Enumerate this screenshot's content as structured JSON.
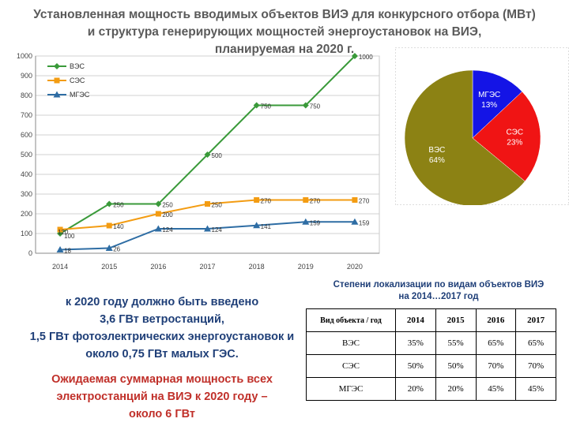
{
  "title": {
    "line1": "Установленная мощность вводимых объектов ВИЭ для конкурсного отбора (МВт)",
    "line2": "и структура генерирующих мощностей энергоустановок на ВИЭ,",
    "line3": "планируемая на 2020 г."
  },
  "chart_data": [
    {
      "type": "line",
      "x": [
        "2014",
        "2015",
        "2016",
        "2017",
        "2018",
        "2019",
        "2020"
      ],
      "ylim": [
        0,
        1000
      ],
      "yticks": [
        "0",
        "100",
        "200",
        "300",
        "400",
        "500",
        "600",
        "700",
        "800",
        "900",
        "1000"
      ],
      "grid": true,
      "legend": "top-left",
      "series": [
        {
          "name": "ВЭС",
          "color": "#3a9a3a",
          "marker": "diamond",
          "values": [
            100,
            250,
            250,
            500,
            750,
            750,
            1000
          ],
          "labels": [
            "100",
            "250",
            "250",
            "500",
            "750",
            "750",
            "1000"
          ]
        },
        {
          "name": "СЭС",
          "color": "#f39c12",
          "marker": "square",
          "values": [
            120,
            140,
            200,
            250,
            270,
            270,
            270
          ],
          "labels": [
            "120",
            "140",
            "200",
            "250",
            "270",
            "270",
            "270"
          ]
        },
        {
          "name": "МГЭС",
          "color": "#2e6da4",
          "marker": "triangle",
          "values": [
            18,
            26,
            124,
            124,
            141,
            159,
            159
          ],
          "labels": [
            "18",
            "26",
            "124",
            "124",
            "141",
            "159",
            "159"
          ]
        }
      ]
    },
    {
      "type": "pie",
      "slices": [
        {
          "name": "МГЭС",
          "value": 13,
          "label": "13%",
          "color": "#1414e6"
        },
        {
          "name": "СЭС",
          "value": 23,
          "label": "23%",
          "color": "#f01414"
        },
        {
          "name": "ВЭС",
          "value": 64,
          "label": "64%",
          "color": "#8c8214"
        }
      ]
    }
  ],
  "summary": {
    "line1": "к 2020 году должно быть введено",
    "line2": "3,6 ГВт ветростанций,",
    "line3": "1,5 ГВт фотоэлектрических энергоустановок и",
    "line4": "около 0,75 ГВт малых ГЭС."
  },
  "expected": {
    "line1": "Ожидаемая суммарная мощность всех",
    "line2": "электростанций на ВИЭ к 2020 году –",
    "line3": "около 6 ГВт"
  },
  "table": {
    "title_line1": "Степени локализации по видам объектов ВИЭ",
    "title_line2": "на 2014…2017 год",
    "headers": [
      "Вид объекта / год",
      "2014",
      "2015",
      "2016",
      "2017"
    ],
    "rows": [
      [
        "ВЭС",
        "35%",
        "55%",
        "65%",
        "65%"
      ],
      [
        "СЭС",
        "50%",
        "50%",
        "70%",
        "70%"
      ],
      [
        "МГЭС",
        "20%",
        "20%",
        "45%",
        "45%"
      ]
    ]
  }
}
